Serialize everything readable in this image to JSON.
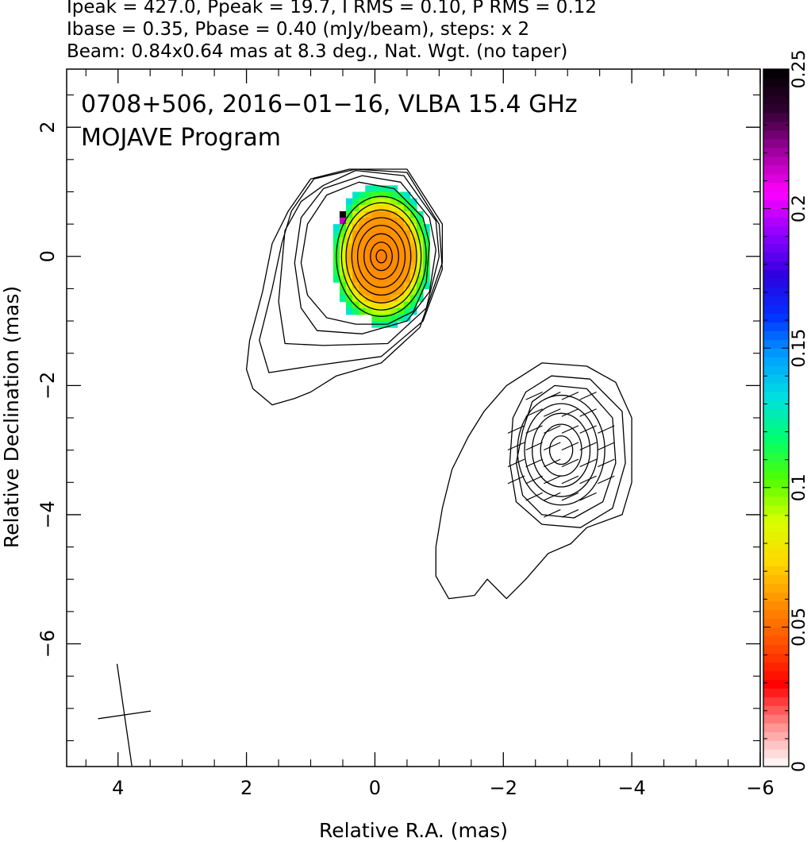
{
  "header": {
    "line1": "Ipeak = 427.0, Ppeak = 19.7, I RMS = 0.10, P RMS = 0.12",
    "line2": "Ibase = 0.35, Pbase = 0.40 (mJy/beam), steps: x 2",
    "line3": "Beam: 0.84x0.64 mas at 8.3 deg., Nat. Wgt. (no taper)"
  },
  "chart_data": {
    "type": "heatmap",
    "title_line1": "0708+506, 2016−01−16, VLBA 15.4 GHz",
    "title_line2": "MOJAVE Program",
    "xlabel": "Relative R.A. (mas)",
    "ylabel": "Relative Declination (mas)",
    "xlim": [
      4.8,
      -6.0
    ],
    "ylim": [
      -7.9,
      2.9
    ],
    "x_ticks": [
      4,
      2,
      0,
      -2,
      -4,
      -6
    ],
    "x_tick_labels": [
      "4",
      "2",
      "0",
      "−2",
      "−4",
      "−6"
    ],
    "y_ticks": [
      2,
      0,
      -2,
      -4,
      -6
    ],
    "y_tick_labels": [
      "2",
      "0",
      "−2",
      "−4",
      "−6"
    ],
    "colorbar": {
      "range": [
        0,
        0.25
      ],
      "ticks": [
        0,
        0.05,
        0.1,
        0.15,
        0.2,
        0.25
      ],
      "tick_labels": [
        "0",
        "0.05",
        "0.1",
        "0.15",
        "0.2",
        "0.25"
      ],
      "colors": [
        "#ffffff",
        "#ff9090",
        "#ff0000",
        "#ff5000",
        "#ff9000",
        "#ffd800",
        "#d8ff00",
        "#50ff00",
        "#00ff70",
        "#00e0e0",
        "#00a0ff",
        "#0030ff",
        "#3000e0",
        "#9000ff",
        "#ff00ff",
        "#a000a0",
        "#300030",
        "#000000"
      ]
    },
    "core": {
      "ra": -0.1,
      "dec": 0.0
    },
    "jet_component": {
      "ra": -2.9,
      "dec": -3.0
    },
    "beam": {
      "ra": 3.9,
      "dec": -7.1,
      "major": 0.84,
      "minor": 0.64,
      "pa_deg": 8.3
    },
    "grid": false
  }
}
